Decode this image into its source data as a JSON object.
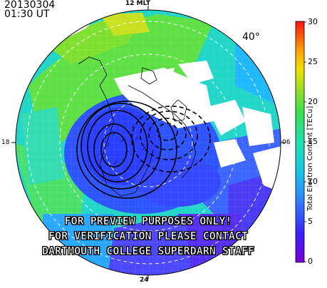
{
  "header": {
    "date": "20130304",
    "time": "01:30 UT"
  },
  "map": {
    "mlt_labels": {
      "top": "12 MLT",
      "bottom": "24",
      "left": "18",
      "right": "06"
    },
    "lat_label": "40°"
  },
  "colorbar": {
    "title": "Total Electron Content [TECu]",
    "ticks": [
      "30",
      "25",
      "20",
      "15",
      "10",
      "5",
      "0"
    ],
    "min": 0,
    "max": 30
  },
  "watermark": {
    "line1": "FOR PREVIEW PURPOSES ONLY!",
    "line2": "FOR VERIFICATION PLEASE CONTACT",
    "line3": "DARTMOUTH COLLEGE SUPERDARN STAFF"
  }
}
